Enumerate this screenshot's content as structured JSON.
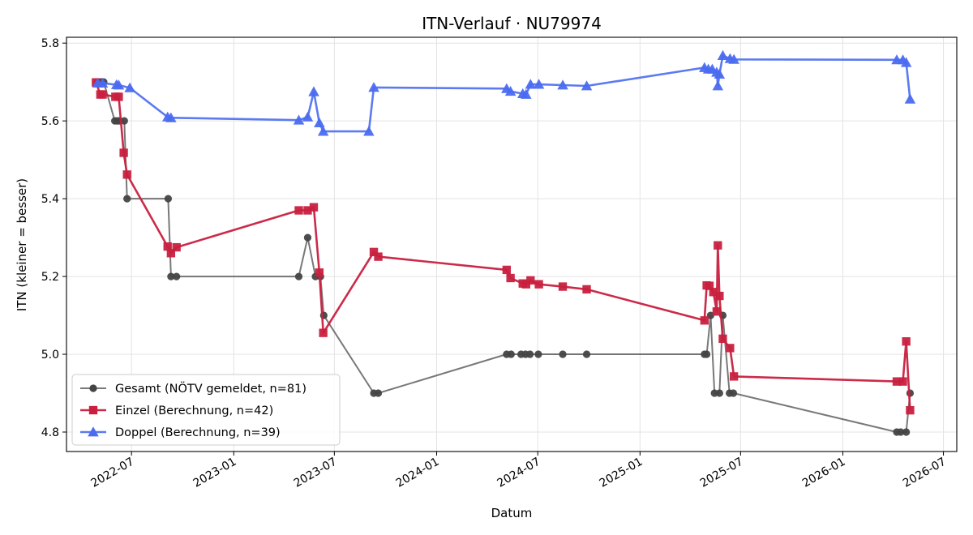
{
  "chart_data": {
    "type": "line",
    "title": "ITN-Verlauf · NU79974",
    "xlabel": "Datum",
    "ylabel": "ITN  (kleiner = besser)",
    "x_type": "date",
    "xlim": [
      "2022-03-06",
      "2026-07-25"
    ],
    "ylim": [
      4.75,
      5.815
    ],
    "x_ticks": [
      "2022-07-01",
      "2023-01-01",
      "2023-07-01",
      "2024-01-01",
      "2024-07-01",
      "2025-01-01",
      "2025-07-01",
      "2026-01-01",
      "2026-07-01"
    ],
    "x_tick_labels": [
      "2022-07",
      "2023-01",
      "2023-07",
      "2024-01",
      "2024-07",
      "2025-01",
      "2025-07",
      "2026-01",
      "2026-07"
    ],
    "y_ticks": [
      4.8,
      5.0,
      5.2,
      5.4,
      5.6,
      5.8
    ],
    "y_tick_labels": [
      "4.8",
      "5.0",
      "5.2",
      "5.4",
      "5.6",
      "5.8"
    ],
    "grid": true,
    "legend_position": "lower-left",
    "series": [
      {
        "name": "Gesamt (NÖTV gemeldet, n=81)",
        "color": "#444444",
        "marker": "circle",
        "points": [
          [
            "2022-05-01",
            5.7
          ],
          [
            "2022-05-05",
            5.7
          ],
          [
            "2022-05-08",
            5.7
          ],
          [
            "2022-05-12",
            5.7
          ],
          [
            "2022-06-01",
            5.6
          ],
          [
            "2022-06-05",
            5.6
          ],
          [
            "2022-06-09",
            5.6
          ],
          [
            "2022-06-18",
            5.6
          ],
          [
            "2022-06-23",
            5.4
          ],
          [
            "2022-09-05",
            5.4
          ],
          [
            "2022-09-10",
            5.2
          ],
          [
            "2022-09-20",
            5.2
          ],
          [
            "2023-04-28",
            5.2
          ],
          [
            "2023-05-14",
            5.3
          ],
          [
            "2023-05-28",
            5.2
          ],
          [
            "2023-06-06",
            5.2
          ],
          [
            "2023-06-12",
            5.1
          ],
          [
            "2023-09-10",
            4.9
          ],
          [
            "2023-09-18",
            4.9
          ],
          [
            "2024-05-06",
            5.0
          ],
          [
            "2024-05-14",
            5.0
          ],
          [
            "2024-06-01",
            5.0
          ],
          [
            "2024-06-09",
            5.0
          ],
          [
            "2024-06-17",
            5.0
          ],
          [
            "2024-07-02",
            5.0
          ],
          [
            "2024-08-15",
            5.0
          ],
          [
            "2024-09-27",
            5.0
          ],
          [
            "2025-04-27",
            5.0
          ],
          [
            "2025-05-01",
            5.0
          ],
          [
            "2025-05-08",
            5.1
          ],
          [
            "2025-05-15",
            4.9
          ],
          [
            "2025-05-24",
            4.9
          ],
          [
            "2025-05-30",
            5.1
          ],
          [
            "2025-06-11",
            4.9
          ],
          [
            "2025-06-18",
            4.9
          ],
          [
            "2026-04-08",
            4.8
          ],
          [
            "2026-04-15",
            4.8
          ],
          [
            "2026-04-25",
            4.8
          ],
          [
            "2026-05-02",
            4.9
          ]
        ]
      },
      {
        "name": "Einzel (Berechnung, n=42)",
        "color": "#c8203f",
        "marker": "square",
        "points": [
          [
            "2022-04-28",
            5.699
          ],
          [
            "2022-05-06",
            5.668
          ],
          [
            "2022-05-10",
            5.668
          ],
          [
            "2022-06-02",
            5.662
          ],
          [
            "2022-06-08",
            5.662
          ],
          [
            "2022-06-17",
            5.518
          ],
          [
            "2022-06-23",
            5.462
          ],
          [
            "2022-09-04",
            5.277
          ],
          [
            "2022-09-10",
            5.26
          ],
          [
            "2022-09-20",
            5.275
          ],
          [
            "2023-04-28",
            5.37
          ],
          [
            "2023-05-14",
            5.37
          ],
          [
            "2023-05-25",
            5.378
          ],
          [
            "2023-06-04",
            5.21
          ],
          [
            "2023-06-11",
            5.055
          ],
          [
            "2023-09-10",
            5.263
          ],
          [
            "2023-09-18",
            5.251
          ],
          [
            "2024-05-06",
            5.217
          ],
          [
            "2024-05-13",
            5.196
          ],
          [
            "2024-06-04",
            5.182
          ],
          [
            "2024-06-10",
            5.18
          ],
          [
            "2024-06-18",
            5.19
          ],
          [
            "2024-07-03",
            5.18
          ],
          [
            "2024-08-15",
            5.174
          ],
          [
            "2024-09-27",
            5.167
          ],
          [
            "2025-04-27",
            5.087
          ],
          [
            "2025-05-01",
            5.177
          ],
          [
            "2025-05-06",
            5.176
          ],
          [
            "2025-05-13",
            5.16
          ],
          [
            "2025-05-19",
            5.11
          ],
          [
            "2025-05-21",
            5.28
          ],
          [
            "2025-05-24",
            5.15
          ],
          [
            "2025-05-30",
            5.04
          ],
          [
            "2025-06-12",
            5.016
          ],
          [
            "2025-06-19",
            4.943
          ],
          [
            "2026-04-08",
            4.93
          ],
          [
            "2026-04-19",
            4.93
          ],
          [
            "2026-04-25",
            5.033
          ],
          [
            "2026-05-02",
            4.856
          ]
        ]
      },
      {
        "name": "Doppel (Berechnung, n=39)",
        "color": "#4a6cf0",
        "marker": "triangle",
        "points": [
          [
            "2022-05-01",
            5.697
          ],
          [
            "2022-05-10",
            5.697
          ],
          [
            "2022-06-04",
            5.693
          ],
          [
            "2022-06-08",
            5.692
          ],
          [
            "2022-06-28",
            5.685
          ],
          [
            "2022-09-04",
            5.61
          ],
          [
            "2022-09-10",
            5.608
          ],
          [
            "2023-04-28",
            5.602
          ],
          [
            "2023-05-14",
            5.61
          ],
          [
            "2023-05-25",
            5.675
          ],
          [
            "2023-06-04",
            5.595
          ],
          [
            "2023-06-11",
            5.573
          ],
          [
            "2023-09-01",
            5.573
          ],
          [
            "2023-09-10",
            5.686
          ],
          [
            "2024-05-06",
            5.683
          ],
          [
            "2024-05-13",
            5.676
          ],
          [
            "2024-06-04",
            5.67
          ],
          [
            "2024-06-10",
            5.668
          ],
          [
            "2024-06-18",
            5.694
          ],
          [
            "2024-07-03",
            5.694
          ],
          [
            "2024-08-15",
            5.692
          ],
          [
            "2024-09-27",
            5.69
          ],
          [
            "2025-04-27",
            5.737
          ],
          [
            "2025-05-04",
            5.733
          ],
          [
            "2025-05-11",
            5.733
          ],
          [
            "2025-05-19",
            5.725
          ],
          [
            "2025-05-21",
            5.69
          ],
          [
            "2025-05-24",
            5.72
          ],
          [
            "2025-05-30",
            5.768
          ],
          [
            "2025-06-12",
            5.76
          ],
          [
            "2025-06-19",
            5.758
          ],
          [
            "2026-04-08",
            5.757
          ],
          [
            "2026-04-19",
            5.757
          ],
          [
            "2026-04-25",
            5.75
          ],
          [
            "2026-05-02",
            5.656
          ]
        ]
      }
    ]
  }
}
